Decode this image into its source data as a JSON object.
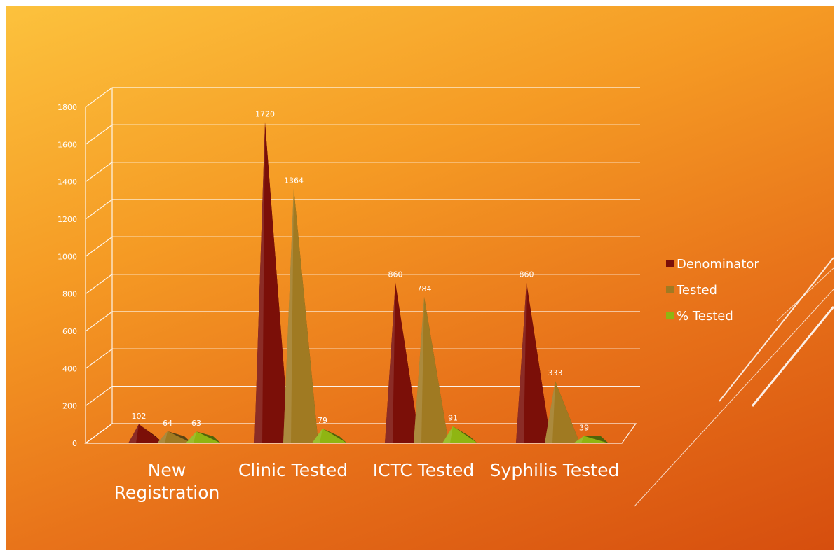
{
  "chart_data": {
    "type": "bar",
    "title": "",
    "xlabel": "",
    "ylabel": "",
    "ylim": [
      0,
      1800
    ],
    "yticks": [
      0,
      200,
      400,
      600,
      800,
      1000,
      1200,
      1400,
      1600,
      1800
    ],
    "categories": [
      [
        "New",
        "Registration"
      ],
      [
        "Clinic Tested"
      ],
      [
        "ICTC Tested"
      ],
      [
        "Syphilis Tested"
      ]
    ],
    "series": [
      {
        "name": "Denominator",
        "color": "#7b0f08",
        "values": [
          102,
          1720,
          860,
          860
        ]
      },
      {
        "name": "Tested",
        "color": "#a07a22",
        "values": [
          64,
          1364,
          784,
          333
        ]
      },
      {
        "name": "% Tested",
        "color": "#8fb512",
        "values": [
          63,
          79,
          91,
          39
        ]
      }
    ],
    "legend_position": "right",
    "grid": true,
    "bar_shape": "3d-pyramid"
  }
}
